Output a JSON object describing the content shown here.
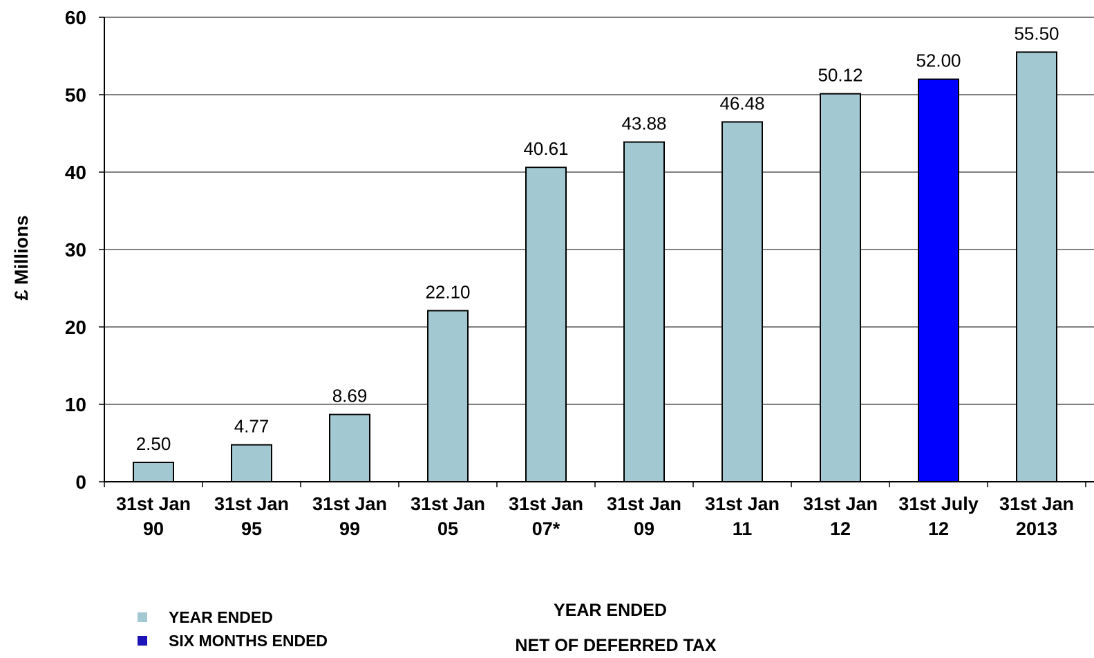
{
  "chart_data": {
    "type": "bar",
    "ylabel": "£ Millions",
    "ylim": [
      0,
      60
    ],
    "yticks": [
      "0",
      "10",
      "20",
      "30",
      "40",
      "50",
      "60"
    ],
    "grid": true,
    "categories": [
      [
        "31st Jan",
        "90"
      ],
      [
        "31st Jan",
        "95"
      ],
      [
        "31st Jan",
        "99"
      ],
      [
        "31st Jan",
        "05"
      ],
      [
        "31st Jan",
        "07*"
      ],
      [
        "31st Jan",
        "09"
      ],
      [
        "31st Jan",
        "11"
      ],
      [
        "31st Jan",
        "12"
      ],
      [
        "31st July",
        "12"
      ],
      [
        "31st Jan",
        "2013"
      ]
    ],
    "values": [
      2.5,
      4.77,
      8.69,
      22.1,
      40.61,
      43.88,
      46.48,
      50.12,
      52.0,
      55.5
    ],
    "value_labels": [
      "2.50",
      "4.77",
      "8.69",
      "22.10",
      "40.61",
      "43.88",
      "46.48",
      "50.12",
      "52.00",
      "55.50"
    ],
    "bar_types": [
      "year",
      "year",
      "year",
      "year",
      "year",
      "year",
      "year",
      "year",
      "six",
      "year"
    ],
    "colors": {
      "year": "#a2c8d1",
      "six": "#0000ff",
      "border": "#000000",
      "grid": "#000000"
    },
    "legend": {
      "placement": "bottom-left",
      "items": [
        {
          "key": "year",
          "label": "YEAR ENDED",
          "color": "#a2c8d1"
        },
        {
          "key": "six",
          "label": "SIX MONTHS ENDED",
          "color": "#1c14b8"
        }
      ]
    },
    "captions": [
      "YEAR ENDED",
      "NET OF DEFERRED TAX"
    ]
  }
}
